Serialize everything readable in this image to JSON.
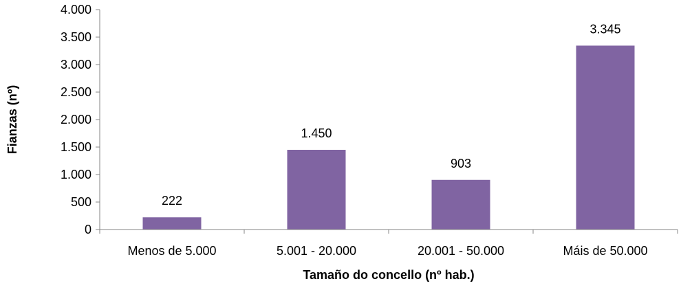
{
  "chart_data": {
    "type": "bar",
    "categories": [
      "Menos de 5.000",
      "5.001 - 20.000",
      "20.001 - 50.000",
      "Máis de 50.000"
    ],
    "values": [
      222,
      1450,
      903,
      3345
    ],
    "data_labels": [
      "222",
      "1.450",
      "903",
      "3.345"
    ],
    "xlabel": "Tamaño do concello (nº hab.)",
    "ylabel": "Fianzas (nº)",
    "ylim": [
      0,
      4000
    ],
    "yticks": [
      0,
      500,
      1000,
      1500,
      2000,
      2500,
      3000,
      3500,
      4000
    ],
    "ytick_labels": [
      "0",
      "500",
      "1.000",
      "1.500",
      "2.000",
      "2.500",
      "3.000",
      "3.500",
      "4.000"
    ],
    "grid": false,
    "legend": "none",
    "bar_color": "#8064a2",
    "axis_color": "#868686"
  }
}
